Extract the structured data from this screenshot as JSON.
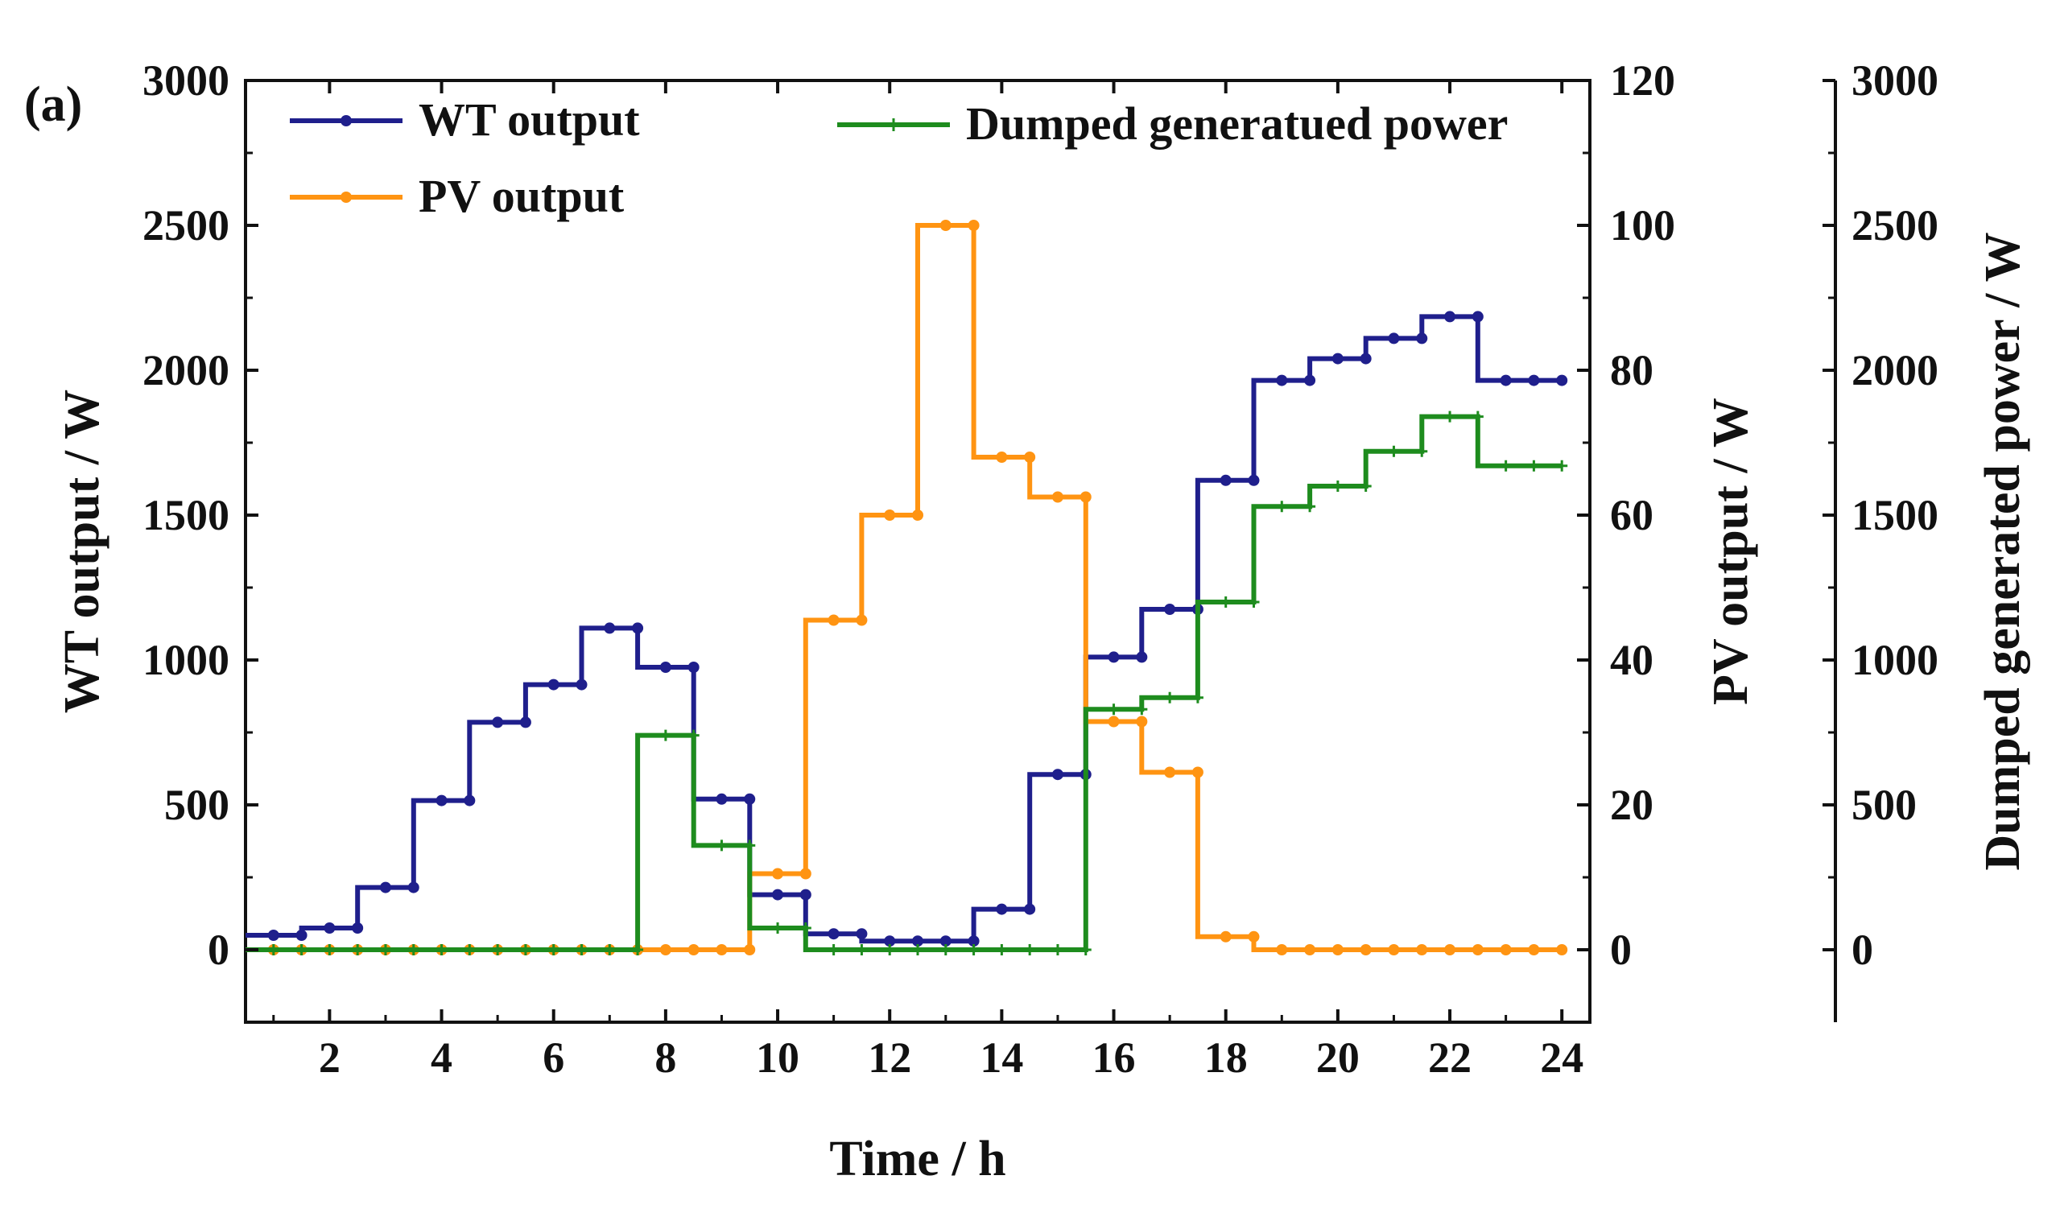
{
  "chart_data": {
    "type": "line",
    "step": true,
    "panel_label": "(a)",
    "xlabel": "Time / h",
    "x_ticks": [
      2,
      4,
      6,
      8,
      10,
      12,
      14,
      16,
      18,
      20,
      22,
      24
    ],
    "x_tick_labels": [
      "2",
      "4",
      "6",
      "8",
      "10",
      "12",
      "14",
      "16",
      "18",
      "20",
      "22",
      "24"
    ],
    "xlim": [
      0.5,
      24.5
    ],
    "x": [
      1,
      2,
      3,
      4,
      5,
      6,
      7,
      8,
      9,
      10,
      11,
      12,
      13,
      14,
      15,
      16,
      17,
      18,
      19,
      20,
      21,
      22,
      23,
      24
    ],
    "axes": {
      "left": {
        "label": "WT output / W",
        "lim": [
          -250,
          3000
        ],
        "ticks": [
          0,
          500,
          1000,
          1500,
          2000,
          2500,
          3000
        ],
        "tick_labels": [
          "0",
          "500",
          "1000",
          "1500",
          "2000",
          "2500",
          "3000"
        ]
      },
      "right1": {
        "label": "PV output / W",
        "lim": [
          -10,
          120
        ],
        "ticks": [
          0,
          20,
          40,
          60,
          80,
          100,
          120
        ],
        "tick_labels": [
          "0",
          "20",
          "40",
          "60",
          "80",
          "100",
          "120"
        ]
      },
      "right2": {
        "label": "Dumped generated power / W",
        "lim": [
          -250,
          3000
        ],
        "ticks": [
          0,
          500,
          1000,
          1500,
          2000,
          2500,
          3000
        ],
        "tick_labels": [
          "0",
          "500",
          "1000",
          "1500",
          "2000",
          "2500",
          "3000"
        ]
      }
    },
    "series": [
      {
        "name": "WT output",
        "axis": "left",
        "color": "#1f1f8c",
        "marker": "circle",
        "values": [
          50,
          75,
          215,
          515,
          785,
          915,
          1110,
          975,
          520,
          190,
          55,
          30,
          30,
          140,
          605,
          1010,
          1175,
          1620,
          1965,
          2040,
          2110,
          2185,
          1965,
          1965
        ]
      },
      {
        "name": "PV output",
        "axis": "right1",
        "color": "#ff9412",
        "marker": "circle",
        "values": [
          0,
          0,
          0,
          0,
          0,
          0,
          0,
          0,
          0,
          10.5,
          45.5,
          60,
          100,
          68,
          62.5,
          31.5,
          24.5,
          1.8,
          0,
          0,
          0,
          0,
          0,
          0
        ]
      },
      {
        "name": "Dumped generatued power",
        "axis": "right2",
        "color": "#1e8c1e",
        "marker": "plus",
        "values": [
          0,
          0,
          0,
          0,
          0,
          0,
          0,
          740,
          360,
          75,
          0,
          0,
          0,
          0,
          0,
          830,
          870,
          1200,
          1530,
          1600,
          1720,
          1840,
          1670,
          1670
        ]
      }
    ],
    "legend": {
      "placement": "top",
      "entries": [
        "WT output",
        "PV output",
        "Dumped generatued power"
      ]
    }
  }
}
